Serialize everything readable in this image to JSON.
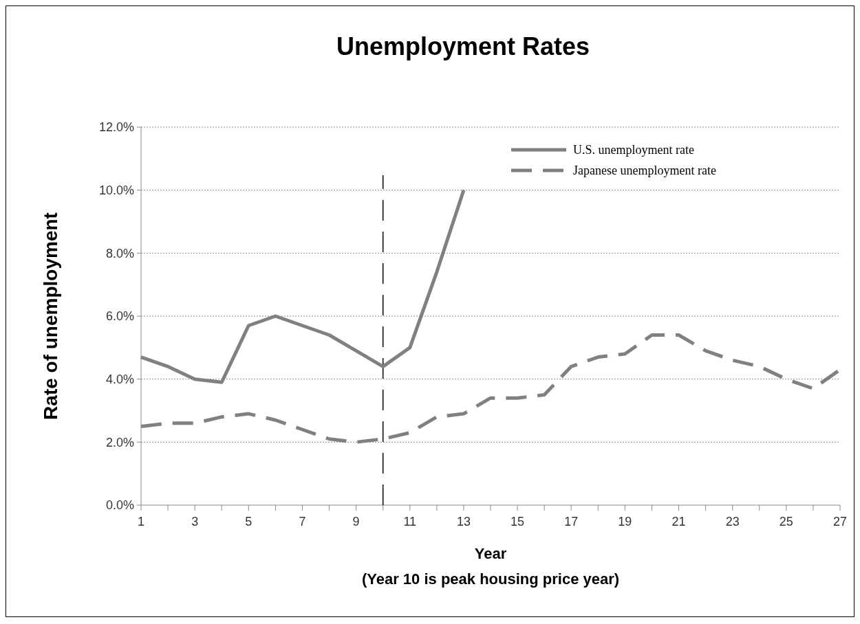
{
  "chart_data": {
    "type": "line",
    "title": "Unemployment Rates",
    "xlabel": "Year",
    "ylabel": "Rate of unemployment",
    "annotations": [
      "(Year 10 is peak housing price year)"
    ],
    "x": [
      1,
      2,
      3,
      4,
      5,
      6,
      7,
      8,
      9,
      10,
      11,
      12,
      13,
      14,
      15,
      16,
      17,
      18,
      19,
      20,
      21,
      22,
      23,
      24,
      25,
      26,
      27
    ],
    "series": [
      {
        "name": "U.S. unemployment rate",
        "color": "#808080",
        "line_style": "solid",
        "values": [
          4.7,
          4.4,
          4.0,
          3.9,
          5.7,
          6.0,
          5.7,
          5.4,
          4.9,
          4.4,
          5.0,
          7.4,
          10.0,
          null,
          null,
          null,
          null,
          null,
          null,
          null,
          null,
          null,
          null,
          null,
          null,
          null,
          null
        ]
      },
      {
        "name": "Japanese unemployment rate",
        "color": "#808080",
        "line_style": "dashed",
        "values": [
          2.5,
          2.6,
          2.6,
          2.8,
          2.9,
          2.7,
          2.4,
          2.1,
          2.0,
          2.1,
          2.3,
          2.8,
          2.9,
          3.4,
          3.4,
          3.5,
          4.4,
          4.7,
          4.8,
          5.4,
          5.4,
          4.9,
          4.6,
          4.4,
          4.0,
          3.7,
          4.3
        ]
      }
    ],
    "xlim": [
      1,
      27
    ],
    "xticks": [
      1,
      {
        "value": 2,
        "label": null
      },
      3,
      {
        "value": 4,
        "label": null
      },
      5,
      {
        "value": 6,
        "label": null
      },
      7,
      {
        "value": 8,
        "label": null
      },
      9,
      {
        "value": 10,
        "label": null
      },
      11,
      {
        "value": 12,
        "label": null
      },
      13,
      {
        "value": 14,
        "label": null
      },
      15,
      {
        "value": 16,
        "label": null
      },
      17,
      {
        "value": 18,
        "label": null
      },
      19,
      {
        "value": 20,
        "label": null
      },
      21,
      {
        "value": 22,
        "label": null
      },
      23,
      {
        "value": 24,
        "label": null
      },
      25,
      {
        "value": 26,
        "label": null
      },
      27
    ],
    "ylim": [
      0,
      12
    ],
    "yticks": [
      {
        "value": 0,
        "label": "0.0%"
      },
      {
        "value": 2,
        "label": "2.0%"
      },
      {
        "value": 4,
        "label": "4.0%"
      },
      {
        "value": 6,
        "label": "6.0%"
      },
      {
        "value": 8,
        "label": "8.0%"
      },
      {
        "value": 10,
        "label": "10.0%"
      },
      {
        "value": 12,
        "label": "12.0%"
      }
    ],
    "ref_lines": [
      {
        "axis": "x",
        "value": 10,
        "color": "#000000",
        "line_style": "dashed"
      }
    ],
    "grid": "y",
    "legend": "top right"
  }
}
